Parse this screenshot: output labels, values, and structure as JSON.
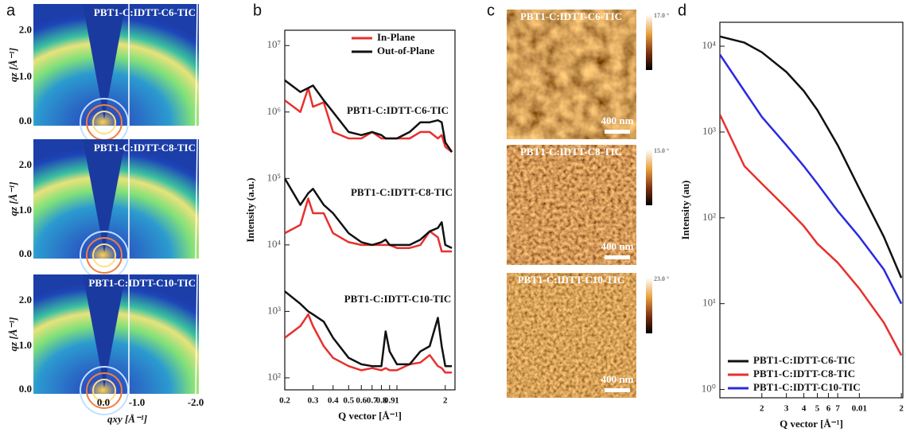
{
  "panel_a": {
    "label": "a",
    "y_label": "qz [Å⁻¹]",
    "y_ticks": [
      "0.0",
      "1.0",
      "2.0"
    ],
    "x_label": "qxy [Å⁻¹]",
    "x_ticks": [
      "0.0",
      "-1.0",
      "-2.0"
    ],
    "rows": [
      {
        "title": "PBT1-C:IDTT-C6-TIC"
      },
      {
        "title": "PBT1-C:IDTT-C8-TIC"
      },
      {
        "title": "PBT1-C:IDTT-C10-TIC"
      }
    ]
  },
  "panel_c": {
    "label": "c",
    "rows": [
      {
        "title": "PBT1-C:IDTT-C6-TIC",
        "color_max": "17.0 °",
        "scale_bar": "400 nm"
      },
      {
        "title": "PBT1-C:IDTT-C8-TIC",
        "color_max": "15.0 °",
        "scale_bar": "400 nm"
      },
      {
        "title": "PBT1-C:IDTT-C10-TIC",
        "color_max": "23.0 °",
        "scale_bar": "400 nm"
      }
    ]
  },
  "chart_data": [
    {
      "type": "line",
      "panel_label": "b",
      "x_label": "Q vector [Å⁻¹]",
      "y_label": "Intensity (a.u.)",
      "xscale": "log",
      "yscale": "log",
      "legend": "upper right",
      "xlim": [
        0.2,
        2.3
      ],
      "ylim": [
        66,
        17000000
      ],
      "xticks": [
        0.2,
        0.3,
        0.4,
        0.5,
        0.6,
        0.7,
        0.8,
        0.9,
        1,
        2
      ],
      "yticks": [
        {
          "value": 100,
          "label": "10²"
        },
        {
          "value": 1000,
          "label": "10³"
        },
        {
          "value": 10000,
          "label": "10⁴"
        },
        {
          "value": 100000,
          "label": "10⁵"
        },
        {
          "value": 1000000,
          "label": "10⁶"
        },
        {
          "value": 10000000,
          "label": "10⁷"
        }
      ],
      "annotations": [
        "PBT1-C:IDTT-C6-TIC",
        "PBT1-C:IDTT-C8-TIC",
        "PBT1-C:IDTT-C10-TIC"
      ],
      "x": [
        0.2,
        0.25,
        0.28,
        0.3,
        0.35,
        0.4,
        0.5,
        0.6,
        0.7,
        0.8,
        0.85,
        0.9,
        1.0,
        1.2,
        1.4,
        1.6,
        1.8,
        1.9,
        2.0,
        2.2
      ],
      "series": [
        {
          "name": "In-Plane",
          "color": "#e8302e",
          "values": [
            [
              1500000,
              1000000,
              2300000,
              1200000,
              1400000,
              500000,
              400000,
              400000,
              500000,
              400000,
              400000,
              400000,
              400000,
              400000,
              500000,
              500000,
              400000,
              450000,
              300000,
              250000
            ],
            [
              15000,
              20000,
              50000,
              30000,
              30000,
              15000,
              11000,
              10000,
              10000,
              10000,
              10000,
              10000,
              9000,
              9000,
              10000,
              16000,
              13000,
              8000,
              8000,
              8000
            ],
            [
              400,
              600,
              900,
              600,
              300,
              200,
              150,
              130,
              140,
              130,
              140,
              130,
              130,
              160,
              170,
              220,
              150,
              140,
              120,
              120
            ]
          ]
        },
        {
          "name": "Out-of-Plane",
          "color": "#111111",
          "values": [
            [
              3000000,
              2000000,
              2300000,
              2500000,
              1500000,
              1000000,
              500000,
              450000,
              500000,
              450000,
              400000,
              400000,
              400000,
              500000,
              700000,
              700000,
              750000,
              700000,
              350000,
              250000
            ],
            [
              100000,
              40000,
              60000,
              70000,
              40000,
              30000,
              15000,
              11000,
              10000,
              11000,
              12000,
              10000,
              10000,
              10000,
              12000,
              16000,
              18000,
              22000,
              10000,
              9000
            ],
            [
              2000,
              1300,
              1000,
              900,
              700,
              400,
              200,
              160,
              150,
              150,
              500,
              250,
              160,
              160,
              250,
              300,
              800,
              300,
              150,
              150
            ]
          ]
        }
      ]
    },
    {
      "type": "line",
      "panel_label": "d",
      "x_label": "Q vector [Å⁻¹]",
      "y_label": "Intensity (au)",
      "xscale": "log",
      "yscale": "log",
      "legend": "lower left",
      "xlim": [
        0.001,
        0.0205
      ],
      "ylim": [
        0.8,
        19000
      ],
      "xticks": [
        {
          "value": 0.002,
          "label": "2"
        },
        {
          "value": 0.003,
          "label": "3"
        },
        {
          "value": 0.004,
          "label": "4"
        },
        {
          "value": 0.005,
          "label": "5"
        },
        {
          "value": 0.006,
          "label": "6"
        },
        {
          "value": 0.007,
          "label": "7"
        },
        0.01,
        {
          "value": 0.02,
          "label": "2"
        }
      ],
      "yticks": [
        {
          "value": 1,
          "label": "10⁰"
        },
        {
          "value": 10,
          "label": "10¹"
        },
        {
          "value": 100,
          "label": "10²"
        },
        {
          "value": 1000,
          "label": "10³"
        },
        {
          "value": 10000,
          "label": "10⁴"
        }
      ],
      "x": [
        0.001,
        0.0015,
        0.002,
        0.003,
        0.004,
        0.005,
        0.007,
        0.01,
        0.015,
        0.02
      ],
      "series": [
        {
          "name": "PBT1-C:IDTT-C6-TIC",
          "color": "#111111",
          "values": [
            13000,
            11000,
            8500,
            5000,
            3000,
            1800,
            700,
            220,
            60,
            20
          ]
        },
        {
          "name": "PBT1-C:IDTT-C8-TIC",
          "color": "#e8302e",
          "values": [
            1600,
            400,
            250,
            130,
            80,
            50,
            30,
            15,
            6,
            2.5
          ]
        },
        {
          "name": "PBT1-C:IDTT-C10-TIC",
          "color": "#2a2ae0",
          "values": [
            8000,
            3000,
            1500,
            700,
            400,
            250,
            120,
            60,
            25,
            10
          ]
        }
      ]
    }
  ]
}
